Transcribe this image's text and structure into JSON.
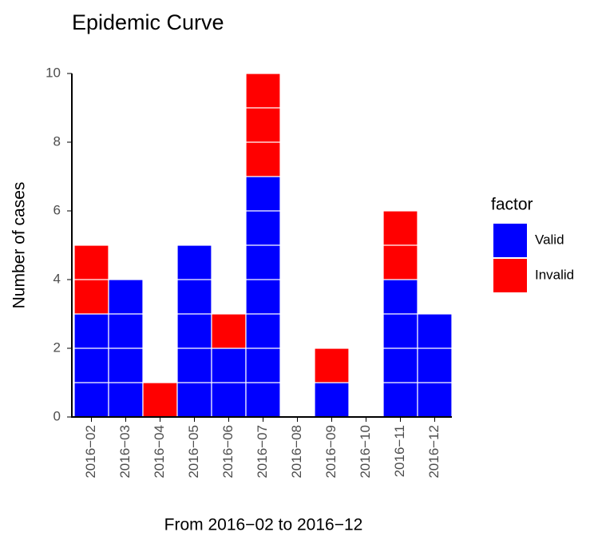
{
  "chart_data": {
    "type": "stacked_bar",
    "title": "Epidemic Curve",
    "x_label": "From 2016−02 to 2016−12",
    "y_label": "Number of cases",
    "categories": [
      "2016−02",
      "2016−03",
      "2016−04",
      "2016−05",
      "2016−06",
      "2016−07",
      "2016−08",
      "2016−09",
      "2016−10",
      "2016−11",
      "2016−12"
    ],
    "series": [
      {
        "name": "Valid",
        "color": "#0000ff",
        "values": [
          3,
          4,
          0,
          5,
          2,
          7,
          0,
          1,
          0,
          4,
          3
        ]
      },
      {
        "name": "Invalid",
        "color": "#ff0000",
        "values": [
          2,
          0,
          1,
          0,
          1,
          3,
          0,
          1,
          0,
          2,
          0
        ]
      }
    ],
    "legend_title": "factor",
    "ylim": [
      0,
      10
    ],
    "yticks": [
      0,
      2,
      4,
      6,
      8,
      10
    ]
  }
}
